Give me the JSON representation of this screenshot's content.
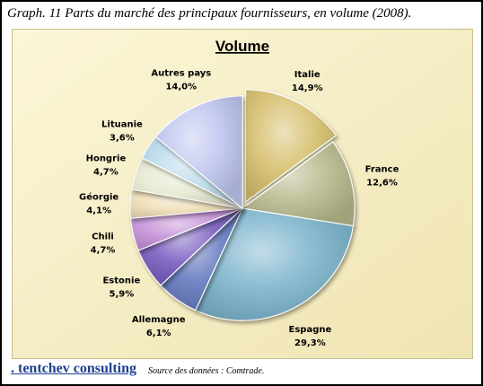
{
  "caption": "Graph. 11 Parts du marché des principaux fournisseurs,  en volume (2008).",
  "footer": {
    "brand": ". tentchev consulting",
    "source": "Source des données : Comtrade."
  },
  "colors": {
    "frame_background": "#f7f0c8",
    "Italie": "#d6bf6c",
    "France": "#b7b98c",
    "Espagne": "#7ab3cc",
    "Allemagne": "#6378bf",
    "Estonie": "#7559be",
    "Chili": "#c38ed6",
    "Géorgie": "#efdfb6",
    "Hongrie": "#e6e9cf",
    "Lituanie": "#b9daea",
    "Autres pays": "#bfc5ef"
  },
  "chart_data": {
    "type": "pie",
    "title": "Volume",
    "unit": "%",
    "slices": [
      {
        "label": "Italie",
        "value": 14.9,
        "value_label": "14,9%"
      },
      {
        "label": "France",
        "value": 12.6,
        "value_label": "12,6%"
      },
      {
        "label": "Espagne",
        "value": 29.3,
        "value_label": "29,3%"
      },
      {
        "label": "Allemagne",
        "value": 6.1,
        "value_label": "6,1%"
      },
      {
        "label": "Estonie",
        "value": 5.9,
        "value_label": "5,9%"
      },
      {
        "label": "Chili",
        "value": 4.7,
        "value_label": "4,7%"
      },
      {
        "label": "Géorgie",
        "value": 4.1,
        "value_label": "4,1%"
      },
      {
        "label": "Hongrie",
        "value": 4.7,
        "value_label": "4,7%"
      },
      {
        "label": "Lituanie",
        "value": 3.6,
        "value_label": "3,6%"
      },
      {
        "label": "Autres pays",
        "value": 14.0,
        "value_label": "14,0%"
      }
    ],
    "start_angle": "12 o'clock",
    "direction": "clockwise",
    "exploded_slice": "Italie",
    "legend": "none"
  }
}
